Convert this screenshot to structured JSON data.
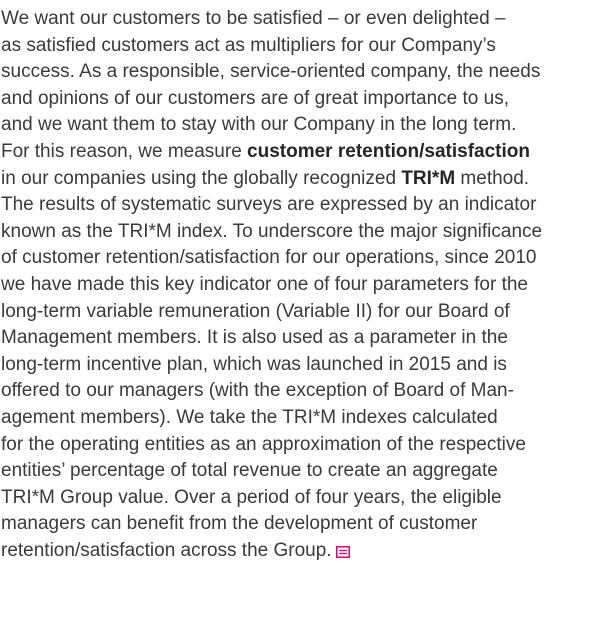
{
  "paragraph": {
    "lines": [
      [
        "We want our customers to be satisfied – or even delighted –"
      ],
      [
        "as satisfied customers act as multipliers for our Company’s"
      ],
      [
        "success. As a responsible, service-oriented company, the needs"
      ],
      [
        "and opinions of our customers are of great importance to us,"
      ],
      [
        "and we want them to stay with our Company in the long term."
      ],
      [
        "For this reason, we measure ",
        {
          "text": "customer retention/satisfaction",
          "strong": true
        }
      ],
      [
        "in our companies using the globally recognized ",
        {
          "text": "TRI*M",
          "strong": true
        },
        " method."
      ],
      [
        "The results of systematic surveys are expressed by an indicator"
      ],
      [
        "known as the TRI*M index. To underscore the major significance"
      ],
      [
        "of customer retention/satisfaction for our operations, since 2010"
      ],
      [
        "we have made this key indicator one of four parameters for the"
      ],
      [
        "long-term variable remuneration (Variable II) for our Board of"
      ],
      [
        "Management members. It is also used as a parameter in the"
      ],
      [
        "long-term incentive plan, which was launched in 2015 and is"
      ],
      [
        "offered to our managers (with the exception of Board of Man-"
      ],
      [
        "agement members). We take the TRI*M indexes calculated"
      ],
      [
        "for the operating entities as an approximation of the respective"
      ],
      [
        "entities’ percentage of total revenue to create an aggregate"
      ],
      [
        "TRI*M Group value. Over a period of four years, the eligible"
      ],
      [
        "managers can benefit from the development of customer"
      ],
      [
        "retention/satisfaction across the Group."
      ]
    ]
  }
}
